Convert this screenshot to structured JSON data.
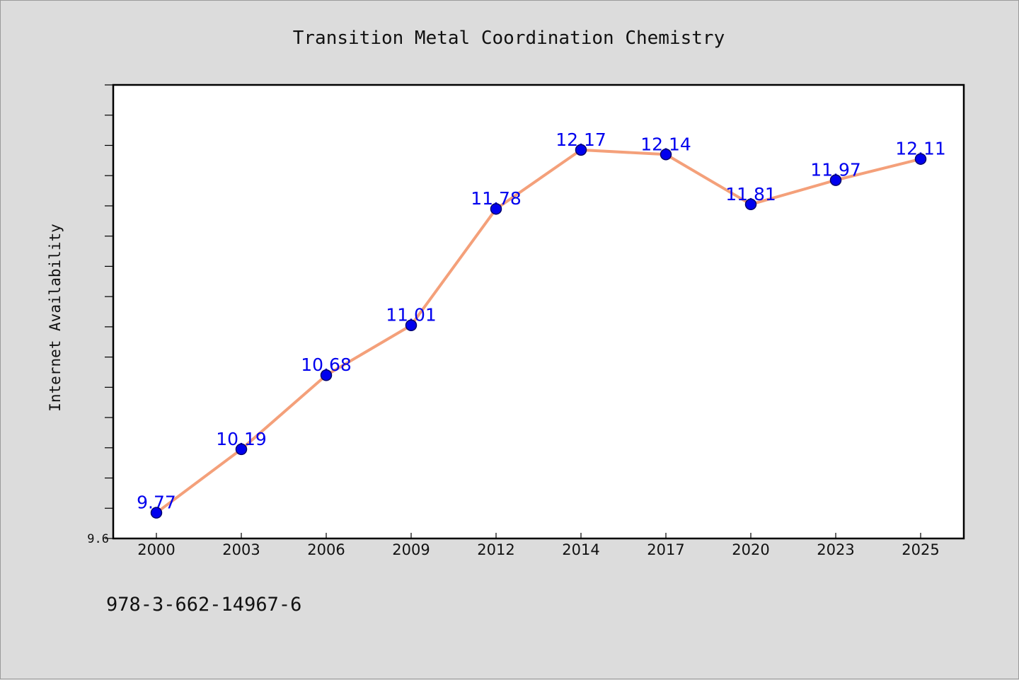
{
  "chart_data": {
    "type": "line",
    "title": "Transition Metal Coordination Chemistry",
    "xlabel": "",
    "ylabel": "Internet Availability",
    "x": [
      "2000",
      "2003",
      "2006",
      "2009",
      "2012",
      "2014",
      "2017",
      "2020",
      "2023",
      "2025"
    ],
    "series": [
      {
        "values": [
          9.77,
          10.19,
          10.68,
          11.01,
          11.78,
          12.17,
          12.14,
          11.81,
          11.97,
          12.11
        ],
        "data_labels": [
          "9.77",
          "10.19",
          "10.68",
          "11.01",
          "11.78",
          "12.17",
          "12.14",
          "11.81",
          "11.97",
          "12.11"
        ],
        "line_color": "#f4a07a",
        "marker_color": "#0000ee"
      }
    ],
    "ylim": [
      9.6,
      12.6
    ],
    "ytick_label": "9.6",
    "grid": false,
    "legend": "none"
  },
  "footer": {
    "isbn": "978-3-662-14967-6"
  },
  "colors": {
    "background": "#dcdcdc",
    "plot_area": "#ffffff",
    "line": "#f4a07a",
    "marker": "#0000ee",
    "label": "#0000ee"
  }
}
